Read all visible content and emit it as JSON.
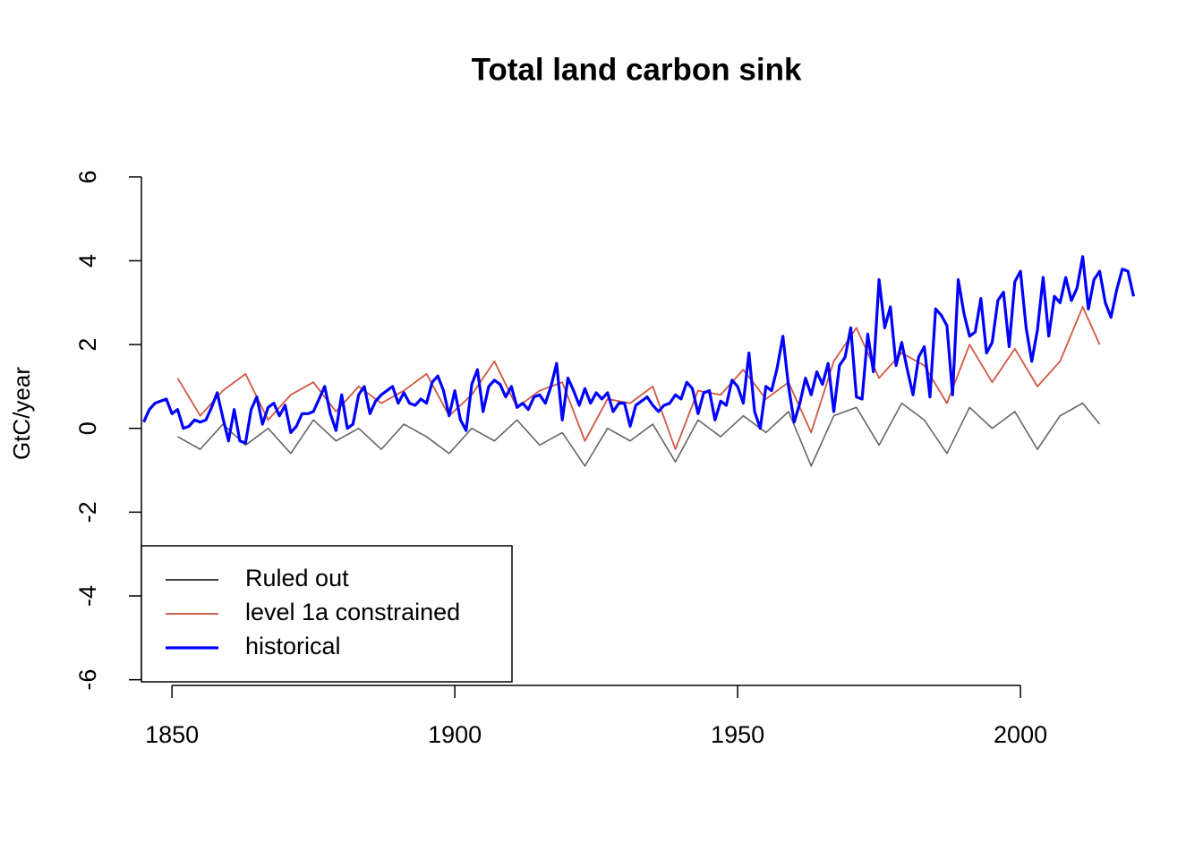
{
  "chart_data": {
    "type": "line",
    "title": "Total land carbon sink",
    "y_label": "GtC/year",
    "xlim": [
      1844.6,
      2020.4
    ],
    "xticks": [
      1850,
      1900,
      1950,
      2000
    ],
    "ylim": [
      -6.05,
      6.7
    ],
    "yticks": [
      -6,
      -4,
      -2,
      0,
      2,
      4,
      6
    ],
    "legend": "bottomleft",
    "series": [
      {
        "name": "Ruled out",
        "color": "#000000",
        "x": [
          1851,
          1855,
          1859,
          1863,
          1867,
          1871,
          1875,
          1879,
          1883,
          1887,
          1891,
          1895,
          1899,
          1903,
          1907,
          1911,
          1915,
          1919,
          1923,
          1927,
          1931,
          1935,
          1939,
          1943,
          1947,
          1951,
          1955,
          1959,
          1963,
          1967,
          1971,
          1975,
          1979,
          1983,
          1987,
          1991,
          1995,
          1999,
          2003,
          2007,
          2011,
          2014
        ],
        "values": [
          -0.2,
          -0.5,
          0.1,
          -0.4,
          0.0,
          -0.6,
          0.2,
          -0.3,
          0.0,
          -0.5,
          0.1,
          -0.2,
          -0.6,
          0.0,
          -0.3,
          0.2,
          -0.4,
          -0.1,
          -0.9,
          0.0,
          -0.3,
          0.1,
          -0.8,
          0.2,
          -0.2,
          0.3,
          -0.1,
          0.4,
          -0.9,
          0.3,
          0.5,
          -0.4,
          0.6,
          0.2,
          -0.6,
          0.5,
          0.0,
          0.4,
          -0.5,
          0.3,
          0.6,
          0.1
        ]
      },
      {
        "name": "level 1a constrained",
        "color": "#cd4f39",
        "x": [
          1851,
          1855,
          1859,
          1863,
          1867,
          1871,
          1875,
          1879,
          1883,
          1887,
          1891,
          1895,
          1899,
          1903,
          1907,
          1911,
          1915,
          1919,
          1923,
          1927,
          1931,
          1935,
          1939,
          1943,
          1947,
          1951,
          1955,
          1959,
          1963,
          1967,
          1971,
          1975,
          1979,
          1983,
          1987,
          1991,
          1995,
          1999,
          2003,
          2007,
          2011,
          2014
        ],
        "values": [
          1.2,
          0.3,
          0.9,
          1.3,
          0.2,
          0.8,
          1.1,
          0.4,
          1.0,
          0.6,
          0.9,
          1.3,
          0.3,
          0.8,
          1.6,
          0.5,
          0.9,
          1.1,
          -0.3,
          0.7,
          0.6,
          1.0,
          -0.5,
          0.9,
          0.8,
          1.4,
          0.7,
          1.1,
          -0.1,
          1.6,
          2.4,
          1.2,
          1.8,
          1.5,
          0.6,
          2.0,
          1.1,
          1.9,
          1.0,
          1.6,
          2.9,
          2.0
        ]
      },
      {
        "name": "historical",
        "color": "#0000ff",
        "x": [
          1845,
          1846,
          1847,
          1848,
          1849,
          1850,
          1851,
          1852,
          1853,
          1854,
          1855,
          1856,
          1857,
          1858,
          1859,
          1860,
          1861,
          1862,
          1863,
          1864,
          1865,
          1866,
          1867,
          1868,
          1869,
          1870,
          1871,
          1872,
          1873,
          1874,
          1875,
          1876,
          1877,
          1878,
          1879,
          1880,
          1881,
          1882,
          1883,
          1884,
          1885,
          1886,
          1887,
          1888,
          1889,
          1890,
          1891,
          1892,
          1893,
          1894,
          1895,
          1896,
          1897,
          1898,
          1899,
          1900,
          1901,
          1902,
          1903,
          1904,
          1905,
          1906,
          1907,
          1908,
          1909,
          1910,
          1911,
          1912,
          1913,
          1914,
          1915,
          1916,
          1917,
          1918,
          1919,
          1920,
          1921,
          1922,
          1923,
          1924,
          1925,
          1926,
          1927,
          1928,
          1929,
          1930,
          1931,
          1932,
          1933,
          1934,
          1935,
          1936,
          1937,
          1938,
          1939,
          1940,
          1941,
          1942,
          1943,
          1944,
          1945,
          1946,
          1947,
          1948,
          1949,
          1950,
          1951,
          1952,
          1953,
          1954,
          1955,
          1956,
          1957,
          1958,
          1959,
          1960,
          1961,
          1962,
          1963,
          1964,
          1965,
          1966,
          1967,
          1968,
          1969,
          1970,
          1971,
          1972,
          1973,
          1974,
          1975,
          1976,
          1977,
          1978,
          1979,
          1980,
          1981,
          1982,
          1983,
          1984,
          1985,
          1986,
          1987,
          1988,
          1989,
          1990,
          1991,
          1992,
          1993,
          1994,
          1995,
          1996,
          1997,
          1998,
          1999,
          2000,
          2001,
          2002,
          2003,
          2004,
          2005,
          2006,
          2007,
          2008,
          2009,
          2010,
          2011,
          2012,
          2013,
          2014,
          2015,
          2016,
          2017,
          2018,
          2019,
          2020
        ],
        "values": [
          0.15,
          0.45,
          0.6,
          0.65,
          0.7,
          0.35,
          0.45,
          0.0,
          0.05,
          0.2,
          0.15,
          0.2,
          0.5,
          0.85,
          0.25,
          -0.3,
          0.45,
          -0.3,
          -0.35,
          0.45,
          0.75,
          0.1,
          0.5,
          0.6,
          0.3,
          0.55,
          -0.1,
          0.05,
          0.35,
          0.35,
          0.4,
          0.7,
          1.0,
          0.35,
          -0.05,
          0.8,
          0.0,
          0.1,
          0.8,
          1.0,
          0.35,
          0.65,
          0.8,
          0.9,
          1.0,
          0.6,
          0.85,
          0.6,
          0.55,
          0.7,
          0.6,
          1.1,
          1.25,
          0.9,
          0.3,
          0.9,
          0.2,
          -0.05,
          1.05,
          1.4,
          0.4,
          1.0,
          1.15,
          1.05,
          0.75,
          1.0,
          0.5,
          0.6,
          0.45,
          0.75,
          0.8,
          0.6,
          1.0,
          1.55,
          0.2,
          1.2,
          0.9,
          0.55,
          0.95,
          0.6,
          0.85,
          0.7,
          0.85,
          0.4,
          0.6,
          0.6,
          0.05,
          0.55,
          0.65,
          0.75,
          0.55,
          0.4,
          0.55,
          0.6,
          0.8,
          0.7,
          1.1,
          0.95,
          0.35,
          0.85,
          0.9,
          0.2,
          0.65,
          0.55,
          1.15,
          1.0,
          0.6,
          1.8,
          0.4,
          0.0,
          1.0,
          0.9,
          1.45,
          2.2,
          1.0,
          0.15,
          0.6,
          1.2,
          0.8,
          1.35,
          1.05,
          1.55,
          0.4,
          1.5,
          1.7,
          2.4,
          0.75,
          0.7,
          2.25,
          1.35,
          3.55,
          2.4,
          2.9,
          1.5,
          2.05,
          1.4,
          0.8,
          1.7,
          1.95,
          0.75,
          2.85,
          2.7,
          2.45,
          0.8,
          3.55,
          2.75,
          2.2,
          2.3,
          3.1,
          1.8,
          2.05,
          3.05,
          3.25,
          1.95,
          3.5,
          3.75,
          2.4,
          1.6,
          2.35,
          3.6,
          2.2,
          3.15,
          3.0,
          3.6,
          3.05,
          3.35,
          4.1,
          2.85,
          3.55,
          3.75,
          3.0,
          2.65,
          3.3,
          3.8,
          3.75,
          3.15
        ]
      }
    ]
  }
}
